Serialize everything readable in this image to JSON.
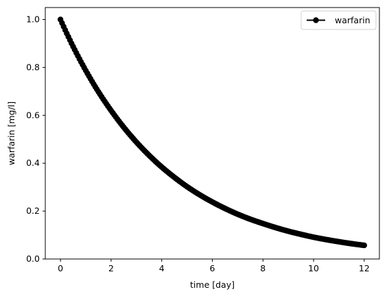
{
  "chart_data": {
    "type": "line",
    "title": "",
    "xlabel": "time [day]",
    "ylabel": "warfarin [mg/l]",
    "xlim": [
      -0.6,
      12.6
    ],
    "ylim": [
      0.0,
      1.05
    ],
    "xticks": [
      0,
      2,
      4,
      6,
      8,
      10,
      12
    ],
    "yticks": [
      0.0,
      0.2,
      0.4,
      0.6,
      0.8,
      1.0
    ],
    "xtick_labels": [
      "0",
      "2",
      "4",
      "6",
      "8",
      "10",
      "12"
    ],
    "ytick_labels": [
      "0.0",
      "0.2",
      "0.4",
      "0.6",
      "0.8",
      "1.0"
    ],
    "grid": false,
    "legend": {
      "placement": "top-right"
    },
    "series": [
      {
        "name": "warfarin",
        "color": "#000000",
        "marker": "circle",
        "x": [
          0,
          0.5,
          1,
          1.5,
          2,
          2.5,
          3,
          3.5,
          4,
          4.5,
          5,
          5.5,
          6,
          6.5,
          7,
          7.5,
          8,
          8.5,
          9,
          9.5,
          10,
          10.5,
          11,
          11.5,
          12
        ],
        "y": [
          1.0,
          0.887,
          0.787,
          0.698,
          0.62,
          0.55,
          0.488,
          0.433,
          0.384,
          0.341,
          0.302,
          0.268,
          0.238,
          0.211,
          0.187,
          0.166,
          0.148,
          0.131,
          0.116,
          0.103,
          0.091,
          0.081,
          0.072,
          0.064,
          0.057
        ]
      }
    ]
  }
}
